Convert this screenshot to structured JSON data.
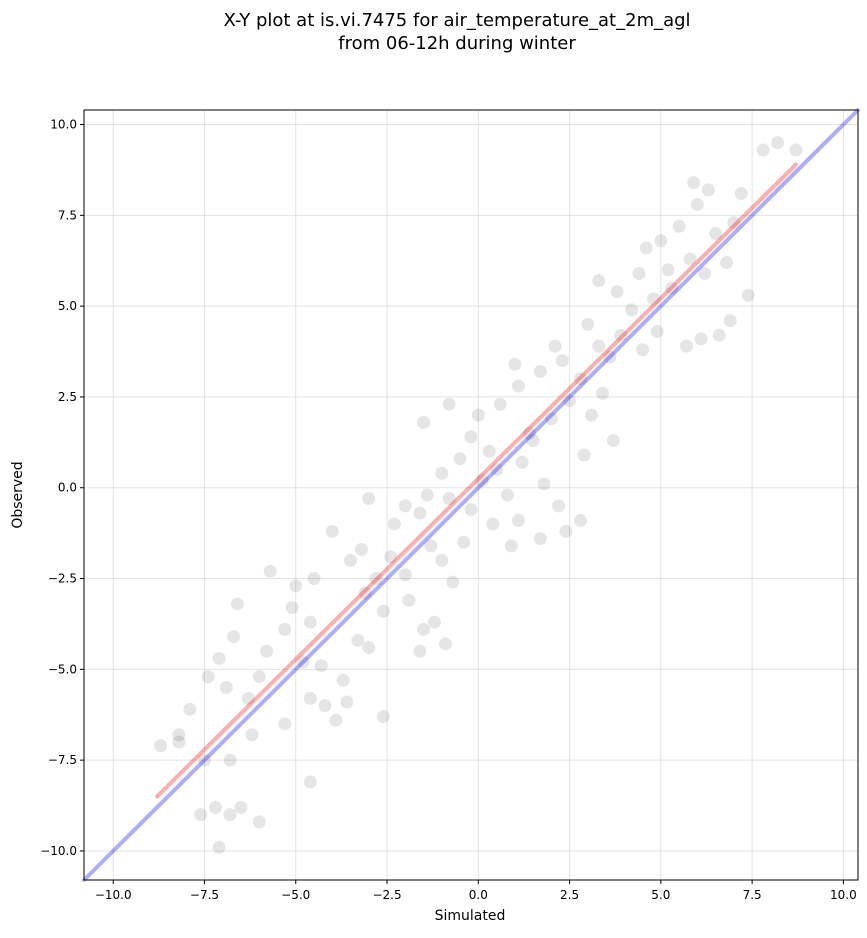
{
  "chart_data": {
    "type": "scatter",
    "title_line1": "X-Y plot at is.vi.7475 for air_temperature_at_2m_agl",
    "title_line2": "from 06-12h during winter",
    "xlabel": "Simulated",
    "ylabel": "Observed",
    "xlim": [
      -10.8,
      10.4
    ],
    "ylim": [
      -10.8,
      10.4
    ],
    "xticks": [
      -10.0,
      -7.5,
      -5.0,
      -2.5,
      0.0,
      2.5,
      5.0,
      7.5,
      10.0
    ],
    "yticks": [
      -10.0,
      -7.5,
      -5.0,
      -2.5,
      0.0,
      2.5,
      5.0,
      7.5,
      10.0
    ],
    "xtick_labels": [
      "−10.0",
      "−7.5",
      "−5.0",
      "−2.5",
      "0.0",
      "2.5",
      "5.0",
      "7.5",
      "10.0"
    ],
    "ytick_labels": [
      "−10.0",
      "−7.5",
      "−5.0",
      "−2.5",
      "0.0",
      "2.5",
      "5.0",
      "7.5",
      "10.0"
    ],
    "grid": true,
    "point_color": "#000000",
    "point_opacity": 0.1,
    "identity_line": {
      "x": [
        -10.8,
        10.4
      ],
      "y": [
        -10.8,
        10.4
      ],
      "color": "#0000ff"
    },
    "fit_line": {
      "x": [
        -8.8,
        8.7
      ],
      "y": [
        -8.5,
        8.9
      ],
      "color": "#ff0000"
    },
    "series": [
      {
        "points": [
          [
            -7.5,
            -7.5
          ],
          [
            -7.2,
            -8.8
          ],
          [
            -7.1,
            -9.9
          ],
          [
            -7.6,
            -9.0
          ],
          [
            -6.8,
            -9.0
          ],
          [
            -6.5,
            -8.8
          ],
          [
            -6.8,
            -7.5
          ],
          [
            -7.9,
            -6.1
          ],
          [
            -8.2,
            -7.0
          ],
          [
            -8.7,
            -7.1
          ],
          [
            -7.4,
            -5.2
          ],
          [
            -7.1,
            -4.7
          ],
          [
            -6.7,
            -4.1
          ],
          [
            -6.9,
            -5.5
          ],
          [
            -6.3,
            -5.8
          ],
          [
            -6.2,
            -6.8
          ],
          [
            -6.0,
            -5.2
          ],
          [
            -5.8,
            -4.5
          ],
          [
            -5.3,
            -3.9
          ],
          [
            -5.1,
            -3.3
          ],
          [
            -5.0,
            -2.7
          ],
          [
            -5.7,
            -2.3
          ],
          [
            -4.5,
            -2.5
          ],
          [
            -4.6,
            -3.7
          ],
          [
            -4.3,
            -4.9
          ],
          [
            -4.8,
            -4.8
          ],
          [
            -4.6,
            -5.8
          ],
          [
            -4.2,
            -6.0
          ],
          [
            -3.9,
            -6.4
          ],
          [
            -3.6,
            -5.9
          ],
          [
            -3.3,
            -4.2
          ],
          [
            -3.0,
            -4.4
          ],
          [
            -2.6,
            -3.4
          ],
          [
            -3.1,
            -2.9
          ],
          [
            -2.8,
            -2.5
          ],
          [
            -3.5,
            -2.0
          ],
          [
            -3.2,
            -1.7
          ],
          [
            -2.4,
            -1.9
          ],
          [
            -2.0,
            -2.4
          ],
          [
            -2.3,
            -1.0
          ],
          [
            -2.0,
            -0.5
          ],
          [
            -1.6,
            -0.7
          ],
          [
            -1.3,
            -1.6
          ],
          [
            -1.9,
            -3.1
          ],
          [
            -1.5,
            -3.9
          ],
          [
            -1.2,
            -3.7
          ],
          [
            -1.0,
            -2.0
          ],
          [
            -0.7,
            -2.6
          ],
          [
            -0.4,
            -1.5
          ],
          [
            -1.4,
            -0.2
          ],
          [
            -1.0,
            0.4
          ],
          [
            -0.5,
            0.8
          ],
          [
            -0.8,
            -0.3
          ],
          [
            -0.2,
            -0.6
          ],
          [
            0.1,
            0.2
          ],
          [
            0.3,
            1.0
          ],
          [
            -0.2,
            1.4
          ],
          [
            0.0,
            2.0
          ],
          [
            0.6,
            2.3
          ],
          [
            0.5,
            0.5
          ],
          [
            0.8,
            -0.2
          ],
          [
            1.2,
            0.7
          ],
          [
            1.4,
            1.5
          ],
          [
            1.1,
            2.8
          ],
          [
            1.7,
            3.2
          ],
          [
            1.5,
            1.3
          ],
          [
            2.0,
            1.9
          ],
          [
            1.8,
            0.1
          ],
          [
            2.2,
            -0.5
          ],
          [
            1.7,
            -1.4
          ],
          [
            2.5,
            2.4
          ],
          [
            2.3,
            3.5
          ],
          [
            2.8,
            3.0
          ],
          [
            3.1,
            2.0
          ],
          [
            2.9,
            0.9
          ],
          [
            3.3,
            3.9
          ],
          [
            3.0,
            4.5
          ],
          [
            3.6,
            3.6
          ],
          [
            3.4,
            2.6
          ],
          [
            3.9,
            4.2
          ],
          [
            4.2,
            4.9
          ],
          [
            3.8,
            5.4
          ],
          [
            4.5,
            3.8
          ],
          [
            4.4,
            5.9
          ],
          [
            4.8,
            5.2
          ],
          [
            4.9,
            4.3
          ],
          [
            5.2,
            6.0
          ],
          [
            5.0,
            6.8
          ],
          [
            5.5,
            7.2
          ],
          [
            5.3,
            5.5
          ],
          [
            5.8,
            6.3
          ],
          [
            6.0,
            7.8
          ],
          [
            6.2,
            5.9
          ],
          [
            6.5,
            7.0
          ],
          [
            6.3,
            8.2
          ],
          [
            6.8,
            6.2
          ],
          [
            7.0,
            7.3
          ],
          [
            7.2,
            8.1
          ],
          [
            7.4,
            5.3
          ],
          [
            6.9,
            4.6
          ],
          [
            7.8,
            9.3
          ],
          [
            8.2,
            9.5
          ],
          [
            8.7,
            9.3
          ],
          [
            6.6,
            4.2
          ],
          [
            5.7,
            3.9
          ],
          [
            3.3,
            5.7
          ],
          [
            2.8,
            -0.9
          ],
          [
            2.4,
            -1.2
          ],
          [
            1.1,
            -0.9
          ],
          [
            -2.6,
            -6.3
          ],
          [
            -4.6,
            -8.1
          ],
          [
            -6.0,
            -9.2
          ],
          [
            -8.2,
            -6.8
          ],
          [
            -3.7,
            -5.3
          ],
          [
            -0.9,
            -4.3
          ],
          [
            -1.6,
            -4.5
          ],
          [
            0.4,
            -1.0
          ],
          [
            1.0,
            3.4
          ],
          [
            4.6,
            6.6
          ],
          [
            5.9,
            8.4
          ],
          [
            -5.3,
            -6.5
          ],
          [
            -4.0,
            -1.2
          ],
          [
            -3.0,
            -0.3
          ],
          [
            -1.5,
            1.8
          ],
          [
            -0.8,
            2.3
          ],
          [
            0.9,
            -1.6
          ],
          [
            2.1,
            3.9
          ],
          [
            3.7,
            1.3
          ],
          [
            6.1,
            4.1
          ],
          [
            -6.6,
            -3.2
          ]
        ]
      }
    ]
  }
}
